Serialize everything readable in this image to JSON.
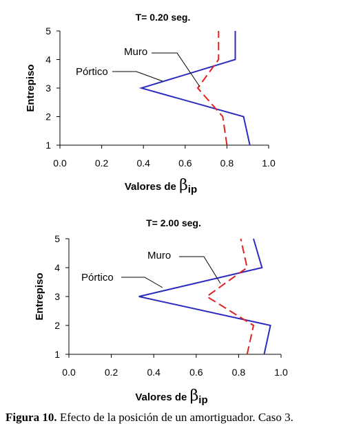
{
  "chart_data": [
    {
      "type": "line",
      "title": "T= 0.20 seg.",
      "xlabel": "Valores de β",
      "xlabel_sub": "ip",
      "ylabel": "Entrepiso",
      "xlim": [
        0.0,
        1.0
      ],
      "ylim": [
        1,
        5
      ],
      "xticks": [
        "0.0",
        "0.2",
        "0.4",
        "0.6",
        "0.8",
        "1.0"
      ],
      "yticks": [
        "1",
        "2",
        "3",
        "4",
        "5"
      ],
      "grid": false,
      "series": [
        {
          "name": "Pórtico",
          "color": "#2b2bbf",
          "dash": "solid",
          "x": [
            0.91,
            0.88,
            0.39,
            0.84,
            0.84
          ],
          "y": [
            1,
            2,
            3,
            4,
            5
          ]
        },
        {
          "name": "Muro",
          "color": "#e02020",
          "dash": "dashed",
          "x": [
            0.8,
            0.78,
            0.66,
            0.76,
            0.76
          ],
          "y": [
            1,
            2,
            3,
            4,
            5
          ]
        }
      ]
    },
    {
      "type": "line",
      "title": "T= 2.00 seg.",
      "xlabel": "Valores de β",
      "xlabel_sub": "ip",
      "ylabel": "Entrepiso",
      "xlim": [
        0.0,
        1.0
      ],
      "ylim": [
        1,
        5
      ],
      "xticks": [
        "0.0",
        "0.2",
        "0.4",
        "0.6",
        "0.8",
        "1.0"
      ],
      "yticks": [
        "1",
        "2",
        "3",
        "4",
        "5"
      ],
      "grid": false,
      "series": [
        {
          "name": "Pórtico",
          "color": "#2b2bbf",
          "dash": "solid",
          "x": [
            0.92,
            0.95,
            0.33,
            0.91,
            0.87
          ],
          "y": [
            1,
            2,
            3,
            4,
            5
          ]
        },
        {
          "name": "Muro",
          "color": "#e02020",
          "dash": "dashed",
          "x": [
            0.84,
            0.87,
            0.65,
            0.84,
            0.81
          ],
          "y": [
            1,
            2,
            3,
            4,
            5
          ]
        }
      ]
    }
  ],
  "caption": {
    "label": "Figura 10.",
    "text": " Efecto de la posición de un amortiguador. Caso 3."
  }
}
